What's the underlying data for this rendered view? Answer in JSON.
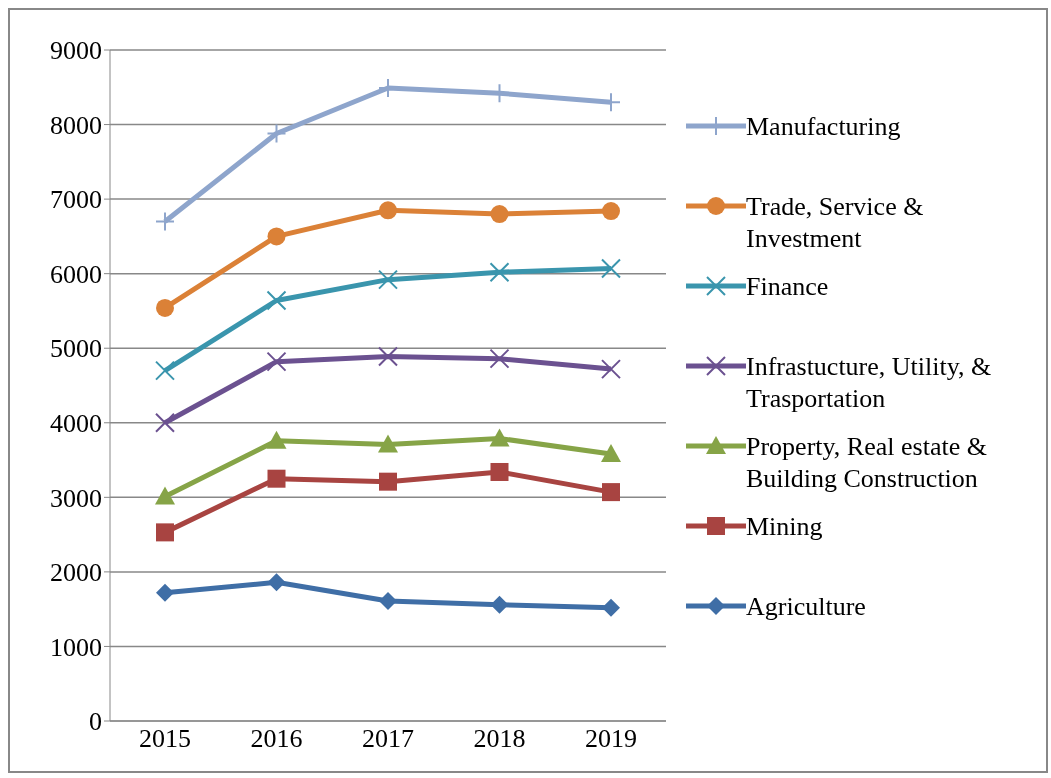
{
  "chart_data": {
    "type": "line",
    "categories": [
      "2015",
      "2016",
      "2017",
      "2018",
      "2019"
    ],
    "series": [
      {
        "name": "Manufacturing",
        "color": "#8ea5cc",
        "marker": "plus",
        "values": [
          6700,
          7880,
          8490,
          8420,
          8300
        ]
      },
      {
        "name": "Trade, Service & Investment",
        "color": "#db8137",
        "marker": "circle",
        "values": [
          5540,
          6500,
          6850,
          6800,
          6840
        ]
      },
      {
        "name": "Finance",
        "color": "#3a95ad",
        "marker": "cross",
        "values": [
          4700,
          5640,
          5920,
          6020,
          6070
        ]
      },
      {
        "name": "Infrastucture, Utility, & Trasportation",
        "color": "#6b5190",
        "marker": "cross",
        "values": [
          4000,
          4820,
          4890,
          4860,
          4720
        ]
      },
      {
        "name": "Property, Real estate & Building Construction",
        "color": "#86a447",
        "marker": "triangle",
        "values": [
          3010,
          3760,
          3710,
          3790,
          3580
        ]
      },
      {
        "name": "Mining",
        "color": "#a84441",
        "marker": "square",
        "values": [
          2530,
          3250,
          3210,
          3340,
          3070
        ]
      },
      {
        "name": "Agriculture",
        "color": "#3f6ea6",
        "marker": "diamond",
        "values": [
          1720,
          1860,
          1610,
          1560,
          1520
        ]
      }
    ],
    "ylim": [
      0,
      9000
    ],
    "yticks": [
      0,
      1000,
      2000,
      3000,
      4000,
      5000,
      6000,
      7000,
      8000,
      9000
    ],
    "grid": "y",
    "legend": "right",
    "line_style": "solid"
  }
}
